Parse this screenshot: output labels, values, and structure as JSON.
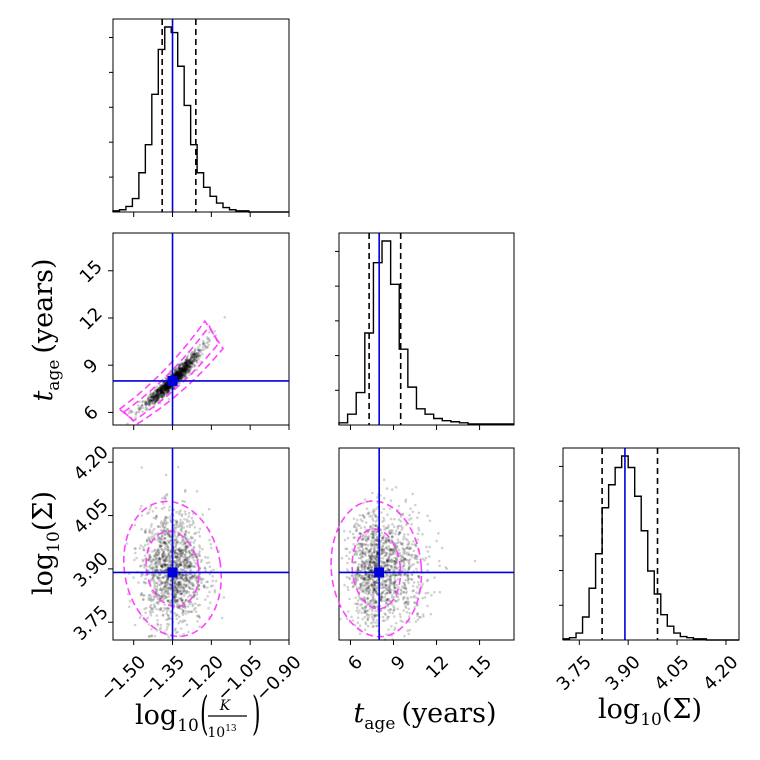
{
  "chart_data": {
    "type": "corner",
    "parameters": [
      "log10(K/10^13)",
      "t_age",
      "log10(Sigma)"
    ],
    "truths": {
      "log10_K": -1.35,
      "t_age": 8.0,
      "log10_Sigma": 3.89
    },
    "ranges": {
      "log10_K": [
        -1.58,
        -0.9
      ],
      "t_age": [
        5.2,
        17.4
      ],
      "log10_Sigma": [
        3.7,
        4.24
      ]
    },
    "axis_labels": {
      "x_k_prefix": "log",
      "x_k_sub": "10",
      "x_k_num": "K",
      "x_k_den": "10",
      "x_k_den_exp": "13",
      "t_main": "t",
      "t_sub": "age",
      "t_units": "(years)",
      "s_prefix": "log",
      "s_sub": "10",
      "s_arg": "(Σ)"
    },
    "ticks": {
      "log10_K": [
        {
          "v": -1.5,
          "label": "−1.50"
        },
        {
          "v": -1.35,
          "label": "−1.35"
        },
        {
          "v": -1.2,
          "label": "−1.20"
        },
        {
          "v": -1.05,
          "label": "−1.05"
        },
        {
          "v": -0.9,
          "label": "−0.90"
        }
      ],
      "t_age": [
        {
          "v": 6,
          "label": "6"
        },
        {
          "v": 9,
          "label": "9"
        },
        {
          "v": 12,
          "label": "12"
        },
        {
          "v": 15,
          "label": "15"
        }
      ],
      "log10_Sigma": [
        {
          "v": 3.75,
          "label": "3.75"
        },
        {
          "v": 3.9,
          "label": "3.90"
        },
        {
          "v": 4.05,
          "label": "4.05"
        },
        {
          "v": 4.2,
          "label": "4.20"
        }
      ]
    },
    "quantiles": {
      "log10_K": [
        -1.39,
        -1.26
      ],
      "t_age": [
        7.3,
        9.5
      ],
      "log10_Sigma": [
        3.82,
        3.99
      ]
    },
    "histograms": {
      "log10_K": {
        "edges": [
          -1.58,
          -1.555,
          -1.53,
          -1.505,
          -1.48,
          -1.455,
          -1.43,
          -1.405,
          -1.38,
          -1.355,
          -1.33,
          -1.305,
          -1.28,
          -1.255,
          -1.23,
          -1.205,
          -1.18,
          -1.155,
          -1.13,
          -1.105,
          -1.08,
          -1.055,
          -1.03,
          -1.005,
          -0.98,
          -0.955,
          -0.93,
          -0.905,
          -0.9
        ],
        "counts": [
          1,
          2,
          5,
          12,
          35,
          60,
          105,
          145,
          165,
          160,
          130,
          95,
          60,
          35,
          22,
          14,
          8,
          4,
          2,
          1,
          1,
          0,
          0,
          0,
          0,
          0,
          0,
          0
        ]
      },
      "t_age": {
        "edges": [
          5.2,
          5.8,
          6.4,
          7.0,
          7.6,
          8.2,
          8.8,
          9.4,
          10.0,
          10.6,
          11.2,
          11.8,
          12.4,
          13.0,
          13.6,
          14.2,
          14.8,
          15.4,
          16.0,
          16.6,
          17.4
        ],
        "counts": [
          2,
          10,
          30,
          85,
          150,
          170,
          130,
          70,
          35,
          15,
          10,
          6,
          4,
          3,
          2,
          1,
          1,
          1,
          1,
          1
        ]
      },
      "log10_Sigma": {
        "edges": [
          3.7,
          3.72,
          3.74,
          3.76,
          3.78,
          3.8,
          3.82,
          3.84,
          3.86,
          3.88,
          3.9,
          3.92,
          3.94,
          3.96,
          3.98,
          4.0,
          4.02,
          4.04,
          4.06,
          4.08,
          4.1,
          4.12,
          4.14,
          4.16,
          4.18,
          4.2,
          4.22,
          4.24
        ],
        "counts": [
          1,
          2,
          6,
          20,
          45,
          75,
          115,
          135,
          150,
          160,
          150,
          125,
          95,
          60,
          40,
          22,
          12,
          6,
          3,
          2,
          1,
          1,
          0,
          0,
          0,
          0,
          0
        ]
      }
    },
    "scatter_K_tage": {
      "relation": "t_age = 8 * exp(1.95 * (log10_K + 1.35))",
      "n_points": 1400,
      "x_sd": 0.05
    },
    "scatter_K_sigma": {
      "x_center": -1.35,
      "x_sd": 0.06,
      "y_center": 3.9,
      "y_sd": 0.08,
      "n_points": 1400
    },
    "scatter_tage_sigma": {
      "x_center": 8.0,
      "x_sd": 1.3,
      "y_center": 3.9,
      "y_sd": 0.08,
      "n_points": 1400
    },
    "colors": {
      "truth": "#0000dd",
      "contour": "#ff44ff",
      "hist": "#000000",
      "quantile": "#000000"
    }
  }
}
